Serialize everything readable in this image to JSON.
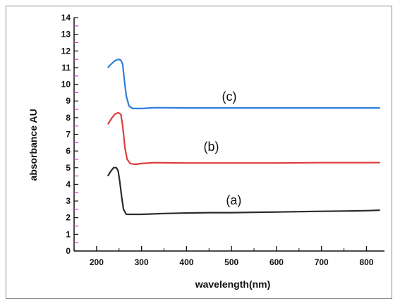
{
  "chart_data": {
    "type": "line",
    "title": "",
    "xlabel": "wavelength(nm)",
    "ylabel": "absorbance AU",
    "xlim": [
      150,
      840
    ],
    "ylim": [
      0,
      14
    ],
    "x_ticks": [
      200,
      300,
      400,
      500,
      600,
      700,
      800
    ],
    "y_ticks": [
      0,
      1,
      2,
      3,
      4,
      5,
      6,
      7,
      8,
      9,
      10,
      11,
      12,
      13,
      14
    ],
    "grid": false,
    "legend": "none",
    "series": [
      {
        "name": "(a)",
        "color": "#2b2b2b",
        "points": [
          [
            225,
            4.5
          ],
          [
            232,
            4.8
          ],
          [
            238,
            5.0
          ],
          [
            244,
            5.0
          ],
          [
            248,
            4.8
          ],
          [
            252,
            4.1
          ],
          [
            256,
            3.2
          ],
          [
            260,
            2.5
          ],
          [
            266,
            2.2
          ],
          [
            275,
            2.2
          ],
          [
            300,
            2.2
          ],
          [
            350,
            2.25
          ],
          [
            400,
            2.28
          ],
          [
            450,
            2.3
          ],
          [
            500,
            2.3
          ],
          [
            550,
            2.32
          ],
          [
            600,
            2.34
          ],
          [
            650,
            2.36
          ],
          [
            700,
            2.38
          ],
          [
            750,
            2.4
          ],
          [
            800,
            2.42
          ],
          [
            830,
            2.45
          ]
        ]
      },
      {
        "name": "(b)",
        "color": "#e03c3c",
        "points": [
          [
            225,
            7.6
          ],
          [
            232,
            7.9
          ],
          [
            240,
            8.2
          ],
          [
            248,
            8.3
          ],
          [
            254,
            8.2
          ],
          [
            258,
            7.5
          ],
          [
            263,
            6.2
          ],
          [
            268,
            5.5
          ],
          [
            275,
            5.25
          ],
          [
            285,
            5.2
          ],
          [
            300,
            5.25
          ],
          [
            330,
            5.3
          ],
          [
            400,
            5.28
          ],
          [
            500,
            5.28
          ],
          [
            600,
            5.28
          ],
          [
            700,
            5.3
          ],
          [
            800,
            5.3
          ],
          [
            830,
            5.3
          ]
        ]
      },
      {
        "name": "(c)",
        "color": "#2d7fd9",
        "points": [
          [
            225,
            11.0
          ],
          [
            232,
            11.2
          ],
          [
            240,
            11.4
          ],
          [
            248,
            11.5
          ],
          [
            254,
            11.45
          ],
          [
            258,
            11.2
          ],
          [
            262,
            10.2
          ],
          [
            266,
            9.3
          ],
          [
            272,
            8.7
          ],
          [
            280,
            8.55
          ],
          [
            300,
            8.55
          ],
          [
            330,
            8.6
          ],
          [
            400,
            8.58
          ],
          [
            500,
            8.58
          ],
          [
            600,
            8.58
          ],
          [
            700,
            8.58
          ],
          [
            800,
            8.58
          ],
          [
            830,
            8.58
          ]
        ]
      }
    ],
    "annotations": [
      {
        "text": "(c)",
        "x": 495,
        "y": 9.0
      },
      {
        "text": "(b)",
        "x": 455,
        "y": 6.0
      },
      {
        "text": "(a)",
        "x": 505,
        "y": 2.8
      }
    ]
  }
}
